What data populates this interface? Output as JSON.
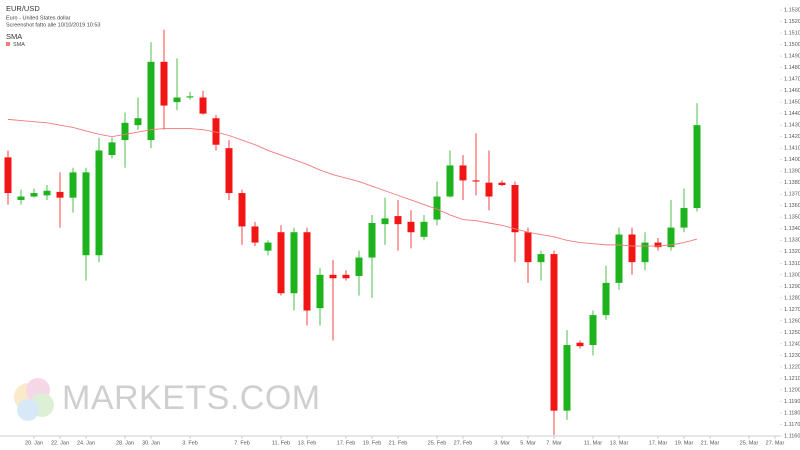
{
  "chart_data": {
    "type": "candlestick",
    "title": "EUR/USD",
    "subtitle": "Euro - United States dollar",
    "note": "Screenshot fatto alle 10/10/2019 10:53",
    "legend_title": "SMA",
    "watermark": "MARKETS.COM",
    "up_color": "#1db31d",
    "down_color": "#f21515",
    "categories": [
      null,
      null,
      "20. Jan",
      null,
      "22. Jan",
      null,
      "24. Jan",
      null,
      null,
      "28. Jan",
      null,
      "30. Jan",
      null,
      null,
      "3. Feb",
      null,
      null,
      null,
      "7. Feb",
      null,
      null,
      "11. Feb",
      null,
      "13. Feb",
      null,
      null,
      "17. Feb",
      null,
      "19. Feb",
      null,
      "21. Feb",
      null,
      null,
      "25. Feb",
      null,
      "27. Feb",
      null,
      null,
      "3. Mar",
      null,
      "5. Mar",
      null,
      "7. Mar",
      null,
      null,
      "11. Mar",
      null,
      "13. Mar",
      null,
      null,
      "17. Mar",
      null,
      "19. Mar",
      null,
      "21. Mar",
      null,
      null,
      "25. Mar",
      null,
      "27. Mar"
    ],
    "open": [
      1.1402,
      1.1365,
      1.1368,
      1.1369,
      1.1372,
      1.1367,
      1.1317,
      1.1317,
      1.1404,
      1.1417,
      1.143,
      1.1417,
      1.1485,
      1.145,
      1.1454,
      1.1454,
      1.1436,
      1.141,
      1.1371,
      1.1342,
      1.1321,
      1.1337,
      1.1284,
      1.1337,
      1.1271,
      1.13,
      1.13,
      1.1299,
      1.1315,
      1.1344,
      1.1351,
      1.1346,
      1.1333,
      1.1348,
      1.1368,
      1.1395,
      1.1382,
      1.138,
      1.138,
      1.1378,
      1.1337,
      1.1311,
      1.1318,
      1.1182,
      1.1241,
      1.1239,
      1.1265,
      1.1293,
      1.1335,
      1.1311,
      1.1328,
      1.1324,
      1.1341,
      1.1358,
      null,
      null,
      null,
      null,
      null,
      null
    ],
    "high": [
      1.1408,
      1.1374,
      1.1375,
      1.1378,
      1.1389,
      1.1393,
      1.1393,
      1.1419,
      1.1419,
      1.1441,
      1.1454,
      1.1502,
      1.1513,
      1.1488,
      1.1459,
      1.146,
      1.1439,
      1.1417,
      1.1374,
      1.1346,
      1.133,
      1.1343,
      1.1341,
      1.1341,
      1.1306,
      1.1313,
      1.1304,
      1.1321,
      1.1352,
      1.1367,
      1.1365,
      1.1356,
      1.1352,
      1.1381,
      1.1408,
      1.1404,
      1.1423,
      1.1408,
      1.1382,
      1.1381,
      1.1341,
      1.1321,
      1.1321,
      1.1252,
      1.1243,
      1.1269,
      1.1308,
      1.1341,
      1.1341,
      1.1337,
      1.1332,
      1.1365,
      1.1375,
      1.1449,
      null,
      null,
      null,
      null,
      null,
      null
    ],
    "low": [
      1.1361,
      1.1361,
      1.1367,
      1.1365,
      1.1341,
      1.1354,
      1.1295,
      1.1311,
      1.1401,
      1.1393,
      1.1426,
      1.141,
      1.1426,
      1.1443,
      1.1452,
      1.1439,
      1.1408,
      1.1365,
      1.1326,
      1.1325,
      1.1317,
      1.1282,
      1.1269,
      1.1256,
      1.1256,
      1.1243,
      1.1295,
      1.1282,
      1.128,
      1.1326,
      1.1321,
      1.1323,
      1.133,
      1.1343,
      1.1367,
      1.1365,
      1.1369,
      1.1356,
      1.1377,
      1.1311,
      1.1293,
      1.1295,
      1.1161,
      1.1174,
      1.1236,
      1.123,
      1.1261,
      1.1287,
      1.13,
      1.1304,
      1.1321,
      1.1321,
      1.1337,
      1.1355,
      null,
      null,
      null,
      null,
      null,
      null
    ],
    "close": [
      1.1371,
      1.1368,
      1.1371,
      1.1373,
      1.1367,
      1.1389,
      1.1389,
      1.1408,
      1.1415,
      1.1432,
      1.1436,
      1.1485,
      1.1447,
      1.1454,
      1.1455,
      1.144,
      1.1413,
      1.1371,
      1.1342,
      1.1328,
      1.1328,
      1.1284,
      1.1337,
      1.1269,
      1.13,
      1.1297,
      1.1297,
      1.1315,
      1.1345,
      1.1349,
      1.1344,
      1.1337,
      1.1346,
      1.1368,
      1.1395,
      1.1382,
      1.1381,
      1.1368,
      1.1378,
      1.1337,
      1.1311,
      1.1318,
      1.1182,
      1.1239,
      1.1238,
      1.1265,
      1.1293,
      1.1335,
      1.1311,
      1.1328,
      1.1324,
      1.1341,
      1.1358,
      1.143,
      null,
      null,
      null,
      null,
      null,
      null
    ],
    "series": [
      {
        "name": "SMA",
        "color": "#f07b7b",
        "values": [
          1.1435,
          1.1434,
          1.1433,
          1.1432,
          1.143,
          1.1428,
          1.1425,
          1.1422,
          1.142,
          1.1422,
          1.1424,
          1.1426,
          1.1427,
          1.1427,
          1.1427,
          1.1426,
          1.1424,
          1.1421,
          1.1417,
          1.1413,
          1.1408,
          1.1404,
          1.14,
          1.1396,
          1.1391,
          1.1387,
          1.1384,
          1.1381,
          1.1377,
          1.1373,
          1.1369,
          1.1365,
          1.1361,
          1.1357,
          1.1352,
          1.1348,
          1.1347,
          1.1345,
          1.1343,
          1.134,
          1.1337,
          1.1335,
          1.1333,
          1.133,
          1.1328,
          1.1327,
          1.1326,
          1.1326,
          1.1325,
          1.1325,
          1.1325,
          1.1326,
          1.1328,
          1.1331,
          null,
          null,
          null,
          null,
          null,
          null
        ]
      }
    ],
    "ylim": [
      1.116,
      1.153
    ],
    "yticks": [
      {
        "value": 1.116,
        "label": "1.11600"
      },
      {
        "value": 1.117,
        "label": "1.11700"
      },
      {
        "value": 1.118,
        "label": "1.11800"
      },
      {
        "value": 1.119,
        "label": "1.11900"
      },
      {
        "value": 1.12,
        "label": "1.12000"
      },
      {
        "value": 1.121,
        "label": "1.12100"
      },
      {
        "value": 1.122,
        "label": "1.12200"
      },
      {
        "value": 1.123,
        "label": "1.12300"
      },
      {
        "value": 1.124,
        "label": "1.12400"
      },
      {
        "value": 1.125,
        "label": "1.12500"
      },
      {
        "value": 1.126,
        "label": "1.12600"
      },
      {
        "value": 1.127,
        "label": "1.12700"
      },
      {
        "value": 1.128,
        "label": "1.12800"
      },
      {
        "value": 1.129,
        "label": "1.12900"
      },
      {
        "value": 1.13,
        "label": "1.13000"
      },
      {
        "value": 1.131,
        "label": "1.13100"
      },
      {
        "value": 1.132,
        "label": "1.13200"
      },
      {
        "value": 1.133,
        "label": "1.13300"
      },
      {
        "value": 1.134,
        "label": "1.13400"
      },
      {
        "value": 1.135,
        "label": "1.13500"
      },
      {
        "value": 1.136,
        "label": "1.13600"
      },
      {
        "value": 1.137,
        "label": "1.13700"
      },
      {
        "value": 1.138,
        "label": "1.13800"
      },
      {
        "value": 1.139,
        "label": "1.13900"
      },
      {
        "value": 1.14,
        "label": "1.14000"
      },
      {
        "value": 1.141,
        "label": "1.14100"
      },
      {
        "value": 1.142,
        "label": "1.14200"
      },
      {
        "value": 1.143,
        "label": "1.14300"
      },
      {
        "value": 1.144,
        "label": "1.14400"
      },
      {
        "value": 1.145,
        "label": "1.14500"
      },
      {
        "value": 1.146,
        "label": "1.14600"
      },
      {
        "value": 1.147,
        "label": "1.14700"
      },
      {
        "value": 1.148,
        "label": "1.14800"
      },
      {
        "value": 1.149,
        "label": "1.14900"
      },
      {
        "value": 1.15,
        "label": "1.15000"
      },
      {
        "value": 1.151,
        "label": "1.15100"
      },
      {
        "value": 1.152,
        "label": "1.15200"
      },
      {
        "value": 1.153,
        "label": "1.15300"
      }
    ]
  }
}
